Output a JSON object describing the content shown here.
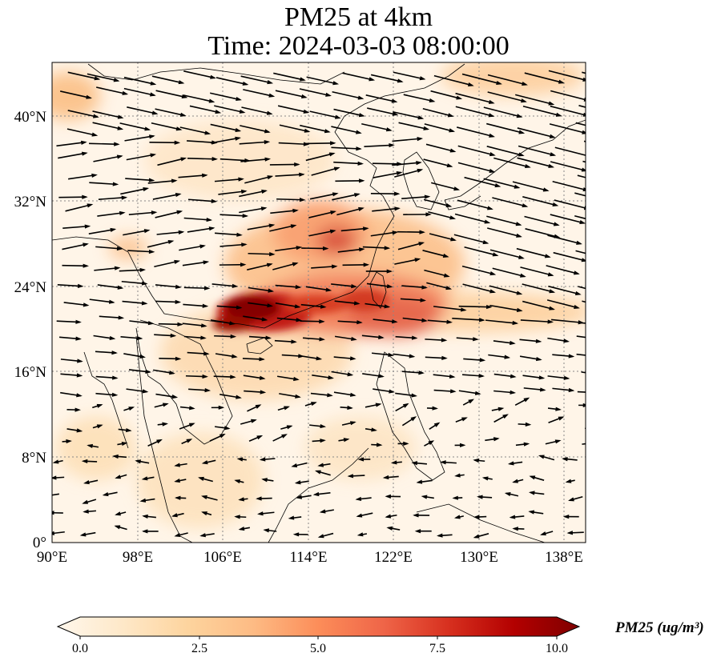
{
  "title": {
    "line1": "PM25 at 4km",
    "line2": "Time: 2024-03-03 08:00:00"
  },
  "map": {
    "lon_range": [
      90,
      140
    ],
    "lat_range": [
      0,
      45
    ],
    "lat_ticks": [
      {
        "value": 0,
        "label": "0°"
      },
      {
        "value": 8,
        "label": "8°N"
      },
      {
        "value": 16,
        "label": "16°N"
      },
      {
        "value": 24,
        "label": "24°N"
      },
      {
        "value": 32,
        "label": "32°N"
      },
      {
        "value": 40,
        "label": "40°N"
      }
    ],
    "lon_ticks": [
      {
        "value": 90,
        "label": "90°E"
      },
      {
        "value": 98,
        "label": "98°E"
      },
      {
        "value": 106,
        "label": "106°E"
      },
      {
        "value": 114,
        "label": "114°E"
      },
      {
        "value": 122,
        "label": "122°E"
      },
      {
        "value": 130,
        "label": "130°E"
      },
      {
        "value": 138,
        "label": "138°E"
      }
    ],
    "gridlines": true
  },
  "colorbar": {
    "label": "PM25 (ug/m³)",
    "ticks": [
      "0.0",
      "2.5",
      "5.0",
      "7.5",
      "10.0"
    ],
    "range": [
      0,
      10
    ],
    "colormap": "OrRd",
    "colors": [
      "#fff7ec",
      "#fee8c8",
      "#fdd49e",
      "#fdbb84",
      "#fc8d59",
      "#ef6548",
      "#d7301f",
      "#b30000",
      "#7f0000"
    ]
  }
}
